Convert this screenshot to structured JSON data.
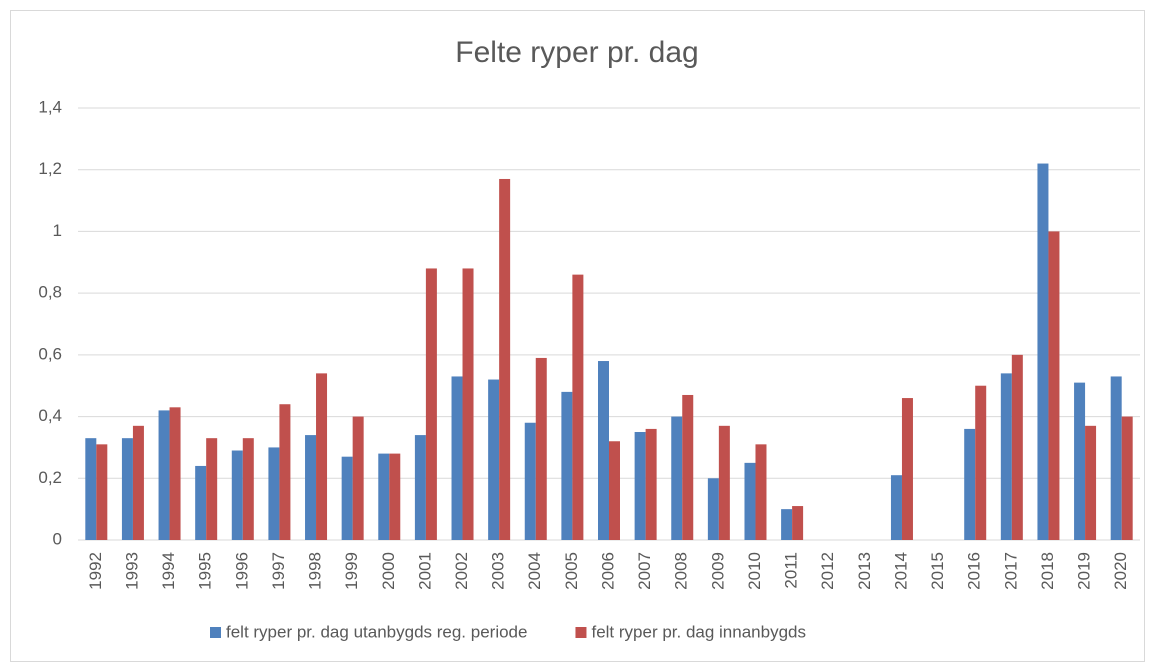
{
  "chart_data": {
    "type": "bar",
    "title": "Felte ryper pr. dag",
    "categories": [
      "1992",
      "1993",
      "1994",
      "1995",
      "1996",
      "1997",
      "1998",
      "1999",
      "2000",
      "2001",
      "2002",
      "2003",
      "2004",
      "2005",
      "2006",
      "2007",
      "2008",
      "2009",
      "2010",
      "2011",
      "2012",
      "2013",
      "2014",
      "2015",
      "2016",
      "2017",
      "2018",
      "2019",
      "2020"
    ],
    "series": [
      {
        "name": "felt ryper pr. dag utanbygds reg. periode",
        "color": "#4f81bd",
        "values": [
          0.33,
          0.33,
          0.42,
          0.24,
          0.29,
          0.3,
          0.34,
          0.27,
          0.28,
          0.34,
          0.53,
          0.52,
          0.38,
          0.48,
          0.58,
          0.35,
          0.4,
          0.2,
          0.25,
          0.1,
          null,
          null,
          0.21,
          null,
          0.36,
          0.54,
          1.22,
          0.51,
          0.53
        ]
      },
      {
        "name": "felt ryper pr. dag innanbygds",
        "color": "#c0504d",
        "values": [
          0.31,
          0.37,
          0.43,
          0.33,
          0.33,
          0.44,
          0.54,
          0.4,
          0.28,
          0.88,
          0.88,
          1.17,
          0.59,
          0.86,
          0.32,
          0.36,
          0.47,
          0.37,
          0.31,
          0.11,
          null,
          null,
          0.46,
          null,
          0.5,
          0.6,
          1.0,
          0.37,
          0.4
        ]
      }
    ],
    "ylim": [
      0,
      1.4
    ],
    "yticks": [
      0,
      {
        "value": 0.2,
        "label": "0,2"
      },
      {
        "value": 0.4,
        "label": "0,4"
      },
      {
        "value": 0.6,
        "label": "0,6"
      },
      {
        "value": 0.8,
        "label": "0,8"
      },
      1,
      {
        "value": 1.2,
        "label": "1,2"
      },
      {
        "value": 1.4,
        "label": "1,4"
      }
    ],
    "grid": true,
    "legend": "bottom"
  }
}
